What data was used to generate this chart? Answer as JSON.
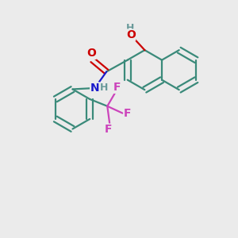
{
  "background_color": "#ebebeb",
  "bond_color": "#3a8a7a",
  "O_color": "#cc0000",
  "N_color": "#1a1acc",
  "F_color": "#cc44bb",
  "H_color": "#6a9a9a",
  "bond_lw": 1.6,
  "font_size": 10,
  "fig_size": [
    3.0,
    3.0
  ],
  "dpi": 100,
  "xlim": [
    0,
    10
  ],
  "ylim": [
    0,
    10
  ]
}
